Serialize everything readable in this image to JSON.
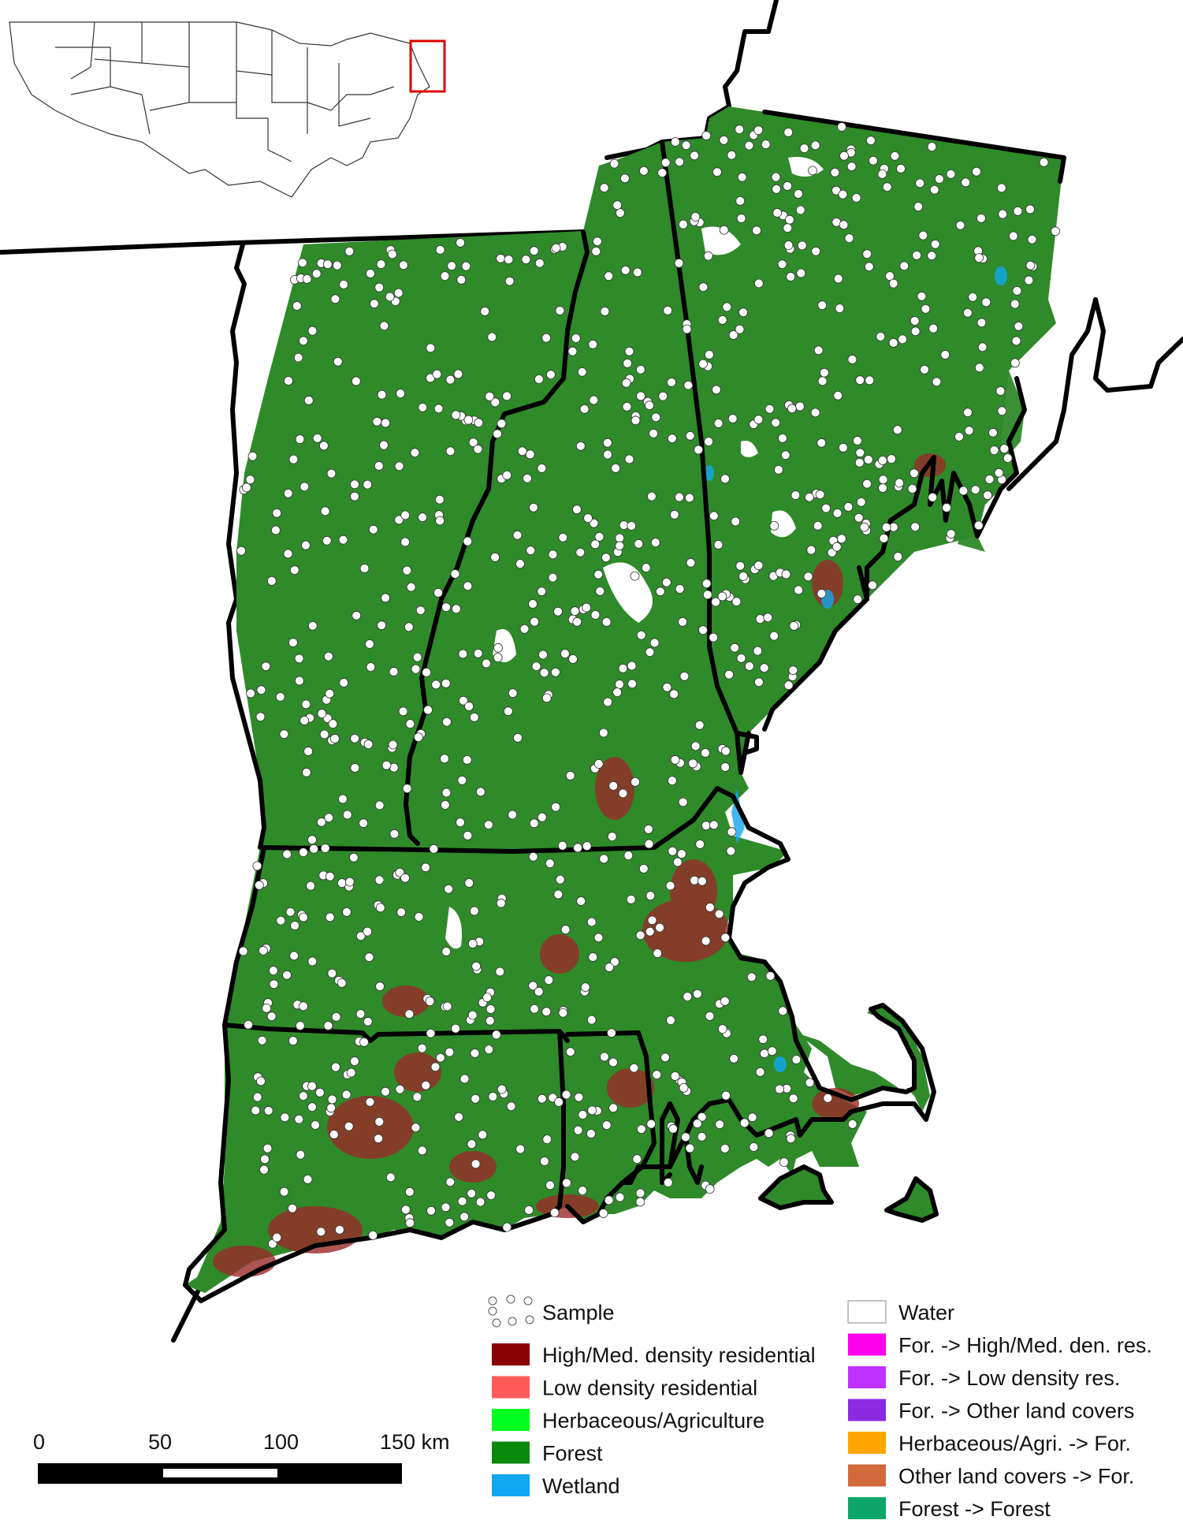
{
  "legend": {
    "sample_label": "Sample",
    "left_items": [
      {
        "label": "High/Med. density residential",
        "color": "#8b0000"
      },
      {
        "label": "Low density residential",
        "color": "#ff5a5a"
      },
      {
        "label": "Herbaceous/Agriculture",
        "color": "#00ff1f"
      },
      {
        "label": "Forest",
        "color": "#098a0b"
      },
      {
        "label": "Wetland",
        "color": "#10a8f0"
      }
    ],
    "right_items": [
      {
        "label": "Water",
        "color": "#ffffff"
      },
      {
        "label": "For. -> High/Med. den. res.",
        "color": "#ff00ee"
      },
      {
        "label": "For. -> Low density res.",
        "color": "#c030ff"
      },
      {
        "label": "For. -> Other land covers",
        "color": "#8a2be2"
      },
      {
        "label": "Herbaceous/Agri. -> For.",
        "color": "#ffa500"
      },
      {
        "label": "Other land covers -> For.",
        "color": "#d2693c"
      },
      {
        "label": "Forest -> Forest",
        "color": "#0ca66a"
      }
    ]
  },
  "scale_bar": {
    "ticks": [
      "0",
      "50",
      "100",
      "150 km"
    ]
  },
  "colors": {
    "forest": "#2f8a2a",
    "urban": "#9a2a28",
    "inset_highlight": "#e00000",
    "boundary": "#000000"
  }
}
